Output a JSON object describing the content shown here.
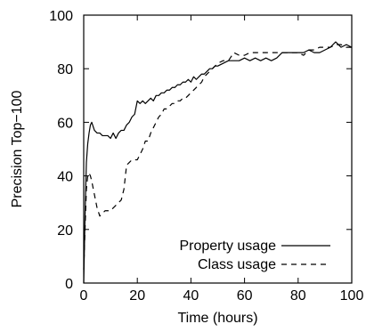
{
  "chart_data": {
    "type": "line",
    "xlabel": "Time (hours)",
    "ylabel": "Precision Top−100",
    "xlim": [
      0,
      100
    ],
    "ylim": [
      0,
      100
    ],
    "xticks": [
      "0",
      "20",
      "40",
      "60",
      "80",
      "100"
    ],
    "yticks": [
      "0",
      "20",
      "40",
      "60",
      "80",
      "100"
    ],
    "grid": false,
    "legend_position": "bottom-right",
    "series": [
      {
        "name": "Property usage",
        "style": "solid",
        "color": "#000000",
        "x": [
          0,
          0.5,
          1,
          1.5,
          2,
          2.5,
          3,
          4,
          5,
          6,
          7,
          8,
          9,
          10,
          11,
          12,
          13,
          14,
          15,
          16,
          17,
          18,
          19,
          20,
          21,
          22,
          23,
          24,
          25,
          26,
          27,
          28,
          29,
          30,
          31,
          32,
          33,
          34,
          35,
          36,
          37,
          38,
          39,
          40,
          41,
          42,
          43,
          44,
          45,
          46,
          47,
          48,
          49,
          50,
          52,
          54,
          56,
          58,
          60,
          62,
          64,
          66,
          68,
          70,
          72,
          74,
          76,
          78,
          80,
          82,
          84,
          86,
          88,
          90,
          92,
          94,
          96,
          98,
          100
        ],
        "y": [
          0,
          25,
          45,
          52,
          56,
          59,
          60,
          57,
          56,
          56,
          55,
          55,
          55,
          54,
          56,
          54,
          56,
          57,
          57,
          59,
          60,
          62,
          63,
          68,
          67,
          68,
          67,
          68,
          69,
          68,
          70,
          70,
          71,
          71,
          72,
          72,
          73,
          73,
          74,
          74,
          75,
          75,
          76,
          75,
          77,
          76,
          77,
          78,
          78,
          79,
          80,
          80,
          81,
          81,
          82,
          83,
          83,
          83,
          84,
          83,
          84,
          83,
          84,
          83,
          84,
          86,
          86,
          86,
          86,
          86,
          87,
          86,
          86,
          87,
          88,
          90,
          88,
          89,
          88
        ]
      },
      {
        "name": "Class usage",
        "style": "dashed",
        "color": "#000000",
        "x": [
          0,
          0.5,
          1,
          1.5,
          2,
          2.5,
          3,
          4,
          5,
          6,
          7,
          8,
          9,
          10,
          11,
          12,
          13,
          14,
          15,
          16,
          17,
          18,
          19,
          20,
          21,
          22,
          23,
          24,
          25,
          26,
          27,
          28,
          29,
          30,
          31,
          32,
          33,
          34,
          35,
          36,
          37,
          38,
          39,
          40,
          41,
          42,
          43,
          44,
          45,
          46,
          47,
          48,
          49,
          50,
          52,
          54,
          56,
          58,
          60,
          62,
          64,
          66,
          68,
          70,
          72,
          74,
          76,
          78,
          80,
          82,
          84,
          86,
          88,
          90,
          92,
          94,
          96,
          98,
          100
        ],
        "y": [
          5,
          20,
          35,
          40,
          41,
          40,
          38,
          33,
          28,
          25,
          26,
          27,
          27,
          27,
          28,
          29,
          30,
          31,
          35,
          44,
          45,
          46,
          46,
          46,
          48,
          50,
          53,
          53,
          56,
          58,
          60,
          62,
          63,
          65,
          65,
          66,
          67,
          67,
          68,
          68,
          69,
          69,
          70,
          71,
          72,
          73,
          74,
          75,
          77,
          78,
          79,
          80,
          81,
          82,
          83,
          83,
          86,
          85,
          85,
          86,
          86,
          86,
          86,
          86,
          86,
          86,
          86,
          86,
          86,
          85,
          87,
          87,
          88,
          88,
          88,
          89,
          89,
          88,
          88
        ]
      }
    ]
  }
}
